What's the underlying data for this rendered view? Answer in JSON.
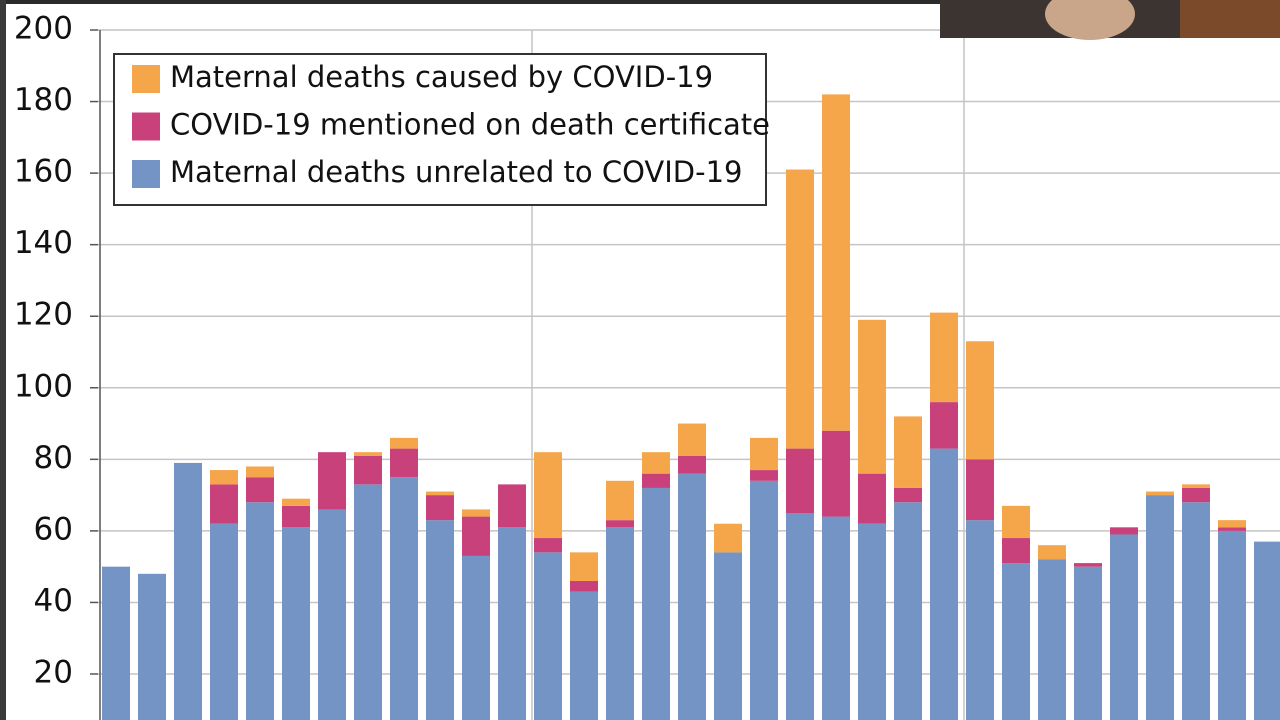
{
  "chart_data": {
    "type": "stacked-bar",
    "categories": [
      null,
      null,
      null,
      null,
      null,
      null,
      null,
      null,
      null,
      null,
      null,
      null,
      null,
      null,
      null,
      null,
      null,
      null,
      null,
      null,
      null,
      null,
      null,
      null,
      null,
      null,
      null,
      null,
      null,
      null,
      null,
      null,
      null
    ],
    "series": [
      {
        "name": "Maternal deaths caused by COVID-19",
        "color": "#f5a54a",
        "values": [
          0,
          0,
          0,
          4,
          3,
          2,
          0,
          1,
          3,
          1,
          2,
          0,
          24,
          8,
          11,
          6,
          9,
          8,
          9,
          78,
          94,
          43,
          20,
          25,
          33,
          9,
          4,
          0,
          0,
          1,
          1,
          2,
          0
        ]
      },
      {
        "name": "COVID-19 mentioned on death certificate",
        "color": "#c9417a",
        "values": [
          0,
          0,
          0,
          11,
          7,
          6,
          16,
          8,
          8,
          7,
          11,
          12,
          4,
          3,
          2,
          4,
          5,
          0,
          3,
          18,
          24,
          14,
          4,
          13,
          17,
          7,
          0,
          1,
          2,
          0,
          4,
          1,
          0
        ]
      },
      {
        "name": "Maternal deaths unrelated to COVID-19",
        "color": "#7394c4",
        "values": [
          50,
          48,
          79,
          62,
          68,
          61,
          66,
          73,
          75,
          63,
          53,
          61,
          54,
          43,
          61,
          72,
          76,
          54,
          74,
          65,
          64,
          62,
          68,
          83,
          63,
          51,
          52,
          50,
          59,
          70,
          68,
          60,
          57
        ]
      }
    ],
    "ylim": [
      0,
      200
    ],
    "yticks": [
      20,
      40,
      60,
      80,
      100,
      120,
      140,
      160,
      180,
      200
    ],
    "grid": true,
    "legend": "top-left"
  }
}
